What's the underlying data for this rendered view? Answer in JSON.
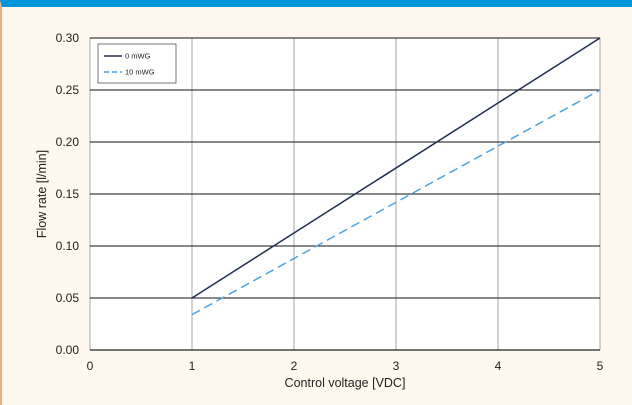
{
  "chart_data": {
    "type": "line",
    "xlabel": "Control voltage [VDC]",
    "ylabel": "Flow rate [l/min]",
    "xlim": [
      0,
      5
    ],
    "ylim": [
      0,
      0.3
    ],
    "x_ticks": [
      "0",
      "1",
      "2",
      "3",
      "4",
      "5"
    ],
    "y_ticks": [
      "0.00",
      "0.05",
      "0.10",
      "0.15",
      "0.20",
      "0.25",
      "0.30"
    ],
    "grid": true,
    "legend_position": "top-left",
    "series": [
      {
        "name": "0 mWG",
        "x": [
          1,
          5
        ],
        "y": [
          0.05,
          0.3
        ],
        "color": "#1f2d4e",
        "style": "solid"
      },
      {
        "name": "10 mWG",
        "x": [
          1,
          5
        ],
        "y": [
          0.034,
          0.25
        ],
        "color": "#4aa3df",
        "style": "dashed"
      }
    ]
  },
  "colors": {
    "top_bar": "#0095d9",
    "page_background": "#fff8ee",
    "plot_background": "#ffffff",
    "grid": "#a6a6a6"
  }
}
